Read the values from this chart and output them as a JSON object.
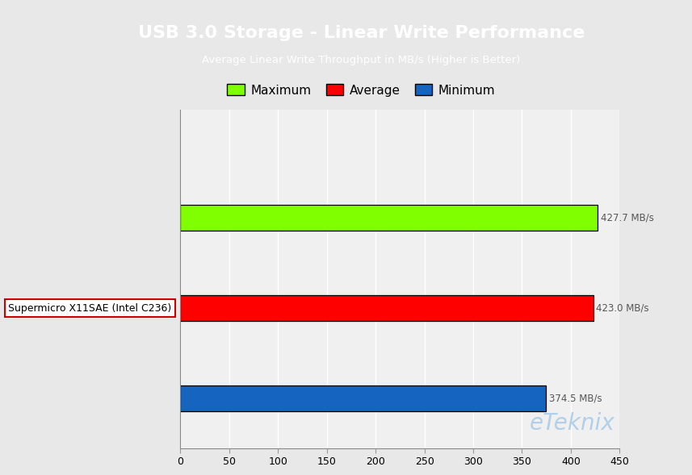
{
  "title": "USB 3.0 Storage - Linear Write Performance",
  "subtitle": "Average Linear Write Throughput in MB/s (Higher is Better)",
  "title_bg_color": "#29ABE2",
  "title_text_color": "#FFFFFF",
  "subtitle_text_color": "#FFFFFF",
  "bg_color": "#E8E8E8",
  "plot_bg_color": "#F0F0F0",
  "categories": [
    "Supermicro X11SAE (Intel C236)"
  ],
  "bars": [
    {
      "label": "Maximum",
      "value": 427.7,
      "color": "#80FF00",
      "edgecolor": "#000000"
    },
    {
      "label": "Average",
      "value": 423.0,
      "color": "#FF0000",
      "edgecolor": "#000000"
    },
    {
      "label": "Minimum",
      "value": 374.5,
      "color": "#1565C0",
      "edgecolor": "#000000"
    }
  ],
  "xlim": [
    0,
    450
  ],
  "xticks": [
    0,
    50,
    100,
    150,
    200,
    250,
    300,
    350,
    400,
    450
  ],
  "value_label_color": "#555555",
  "watermark": "eTeknix",
  "watermark_color": "#AACCE8",
  "legend_colors": [
    "#80FF00",
    "#FF0000",
    "#1565C0"
  ],
  "legend_labels": [
    "Maximum",
    "Average",
    "Minimum"
  ],
  "legend_edgecolors": [
    "#000000",
    "#000000",
    "#000000"
  ]
}
